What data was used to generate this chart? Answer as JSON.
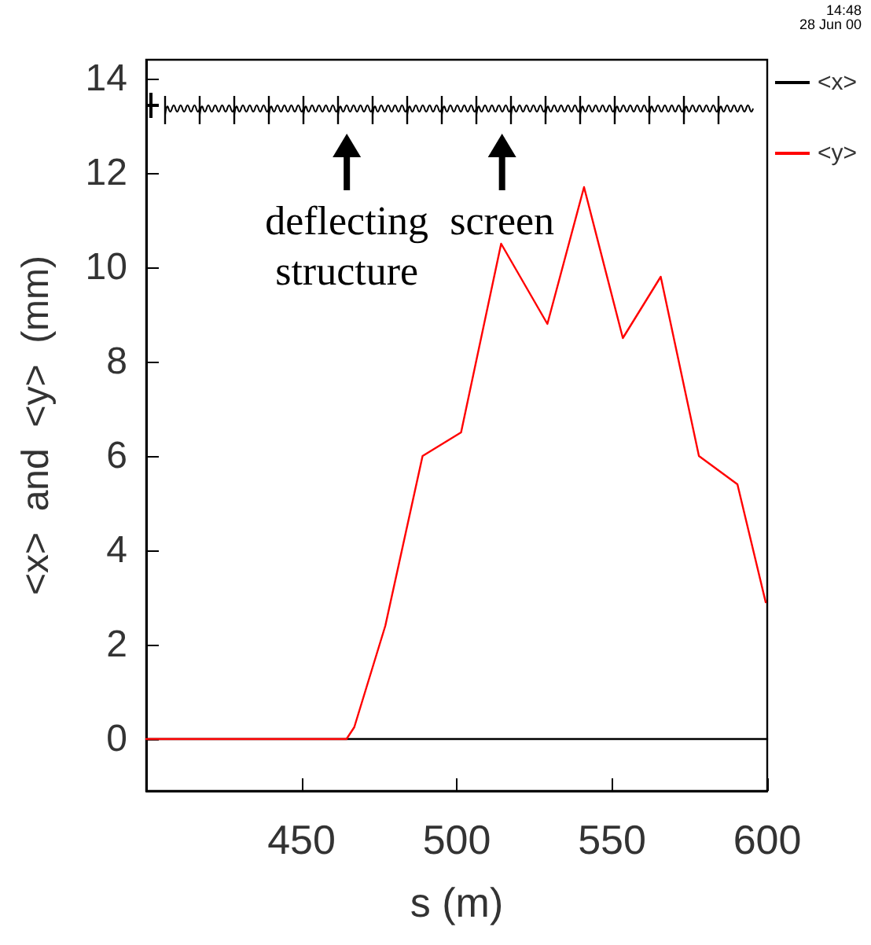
{
  "chart_data": {
    "type": "line",
    "xlabel": "s (m)",
    "ylabel": "<x>  and  <y>  (mm)",
    "xlim": [
      400,
      600
    ],
    "xticks": [
      450,
      500,
      550,
      600
    ],
    "ylim": [
      -1.1,
      14.4
    ],
    "yticks": [
      0,
      2,
      4,
      6,
      8,
      10,
      12,
      14
    ],
    "series": [
      {
        "name": "<x>",
        "color": "#000000",
        "x": [
          400,
          600
        ],
        "values": [
          0,
          0
        ]
      },
      {
        "name": "<y>",
        "color": "#ff0000",
        "x": [
          400,
          464.5,
          467,
          477,
          489,
          501.4,
          514.3,
          529.2,
          541,
          553.5,
          565.7,
          578,
          590.4,
          599.5
        ],
        "values": [
          0,
          0,
          0.25,
          2.4,
          6.0,
          6.5,
          10.5,
          8.8,
          11.7,
          8.5,
          9.8,
          6.0,
          5.4,
          2.9
        ]
      }
    ],
    "annotations": [
      "deflecting structure",
      "screen",
      "14:48\n28 Jun 00"
    ],
    "legend": "right",
    "grid": false,
    "marker": "none",
    "line_style": "solid"
  }
}
